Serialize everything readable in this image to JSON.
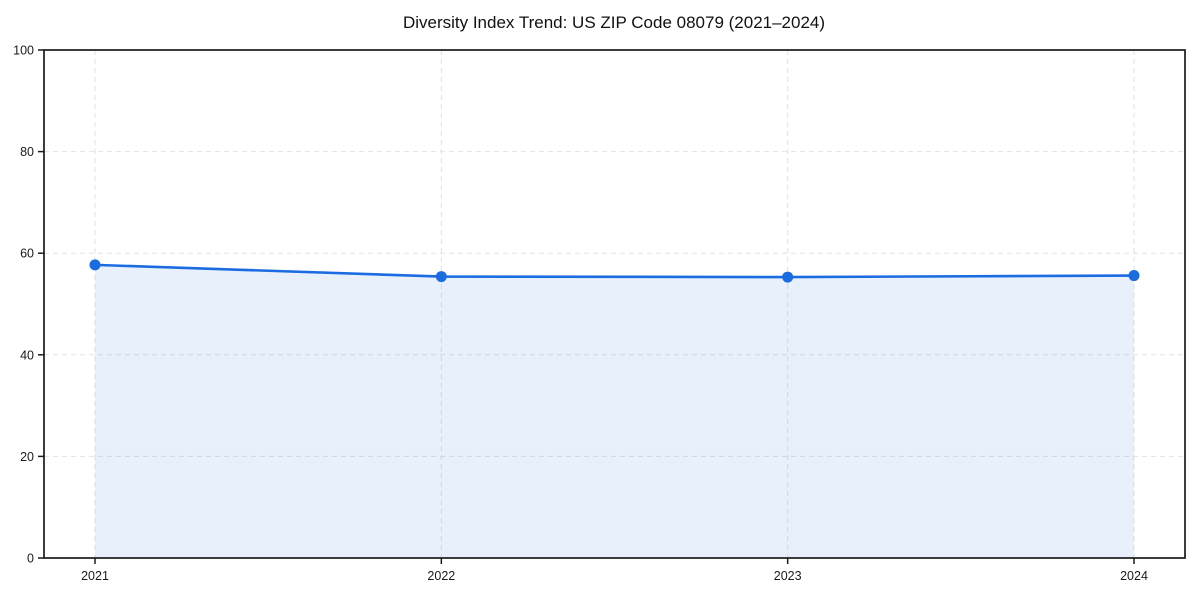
{
  "chart_data": {
    "type": "area",
    "title": "Diversity Index Trend: US ZIP Code 08079 (2021–2024)",
    "x": [
      2021,
      2022,
      2023,
      2024
    ],
    "xticks": [
      "2021",
      "2022",
      "2023",
      "2024"
    ],
    "series": [
      {
        "name": "Diversity Index",
        "values": [
          57.7,
          55.4,
          55.3,
          55.6
        ]
      }
    ],
    "xlabel": "",
    "ylabel": "",
    "ylim": [
      0,
      100
    ],
    "yticks": [
      0,
      20,
      40,
      60,
      80,
      100
    ],
    "grid": "dashed",
    "legend_position": "none",
    "colors": {
      "line": "#1b6ce0",
      "marker": "#1b6ce0",
      "fill": "rgba(27,108,224,0.10)",
      "grid": "#e2e2e2",
      "spine": "#1a1a1a",
      "tick": "#1a1a1a"
    }
  }
}
